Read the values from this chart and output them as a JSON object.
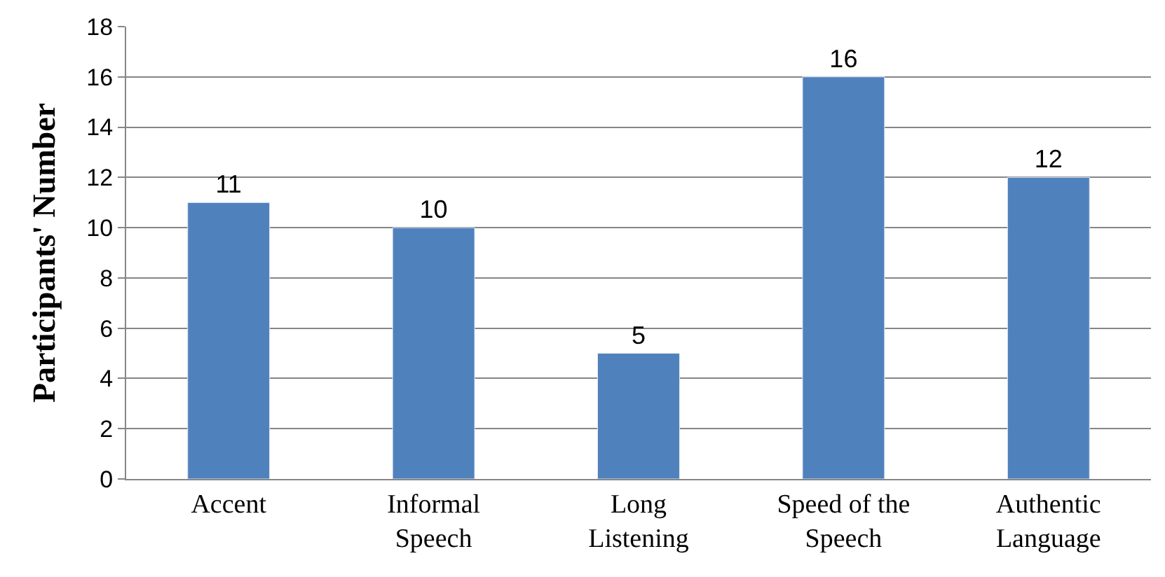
{
  "chart_data": {
    "type": "bar",
    "ylabel": "Participants' Number",
    "categories": [
      "Accent",
      "Informal Speech",
      "Long Listening",
      "Speed of the Speech",
      "Authentic Language"
    ],
    "values": [
      11,
      10,
      5,
      16,
      12
    ],
    "color": "#4f81bd",
    "ylim": [
      0,
      18
    ],
    "yticks": [
      0,
      2,
      4,
      6,
      8,
      10,
      12,
      14,
      16,
      18
    ],
    "grid": "y",
    "data_labels": true,
    "legend": false
  }
}
